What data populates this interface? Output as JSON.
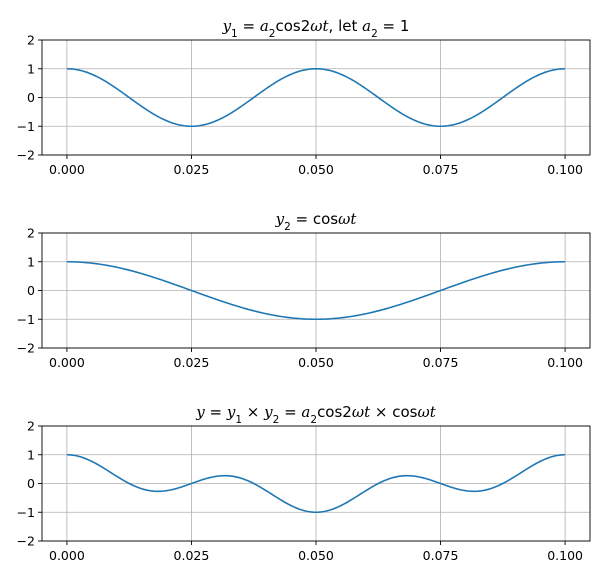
{
  "chart_data": [
    {
      "type": "line",
      "title": {
        "parts": [
          {
            "t": "y",
            "i": true
          },
          {
            "t": "1",
            "sub": true
          },
          {
            "t": " = "
          },
          {
            "t": "a",
            "i": true
          },
          {
            "t": "2",
            "sub": true
          },
          {
            "t": "cos2"
          },
          {
            "t": "ωt",
            "i": true
          },
          {
            "t": ", let "
          },
          {
            "t": "a",
            "i": true
          },
          {
            "t": "2",
            "sub": true
          },
          {
            "t": " = 1"
          }
        ]
      },
      "function": "cos(4*pi*t/0.1)",
      "x_range": [
        0,
        0.1
      ],
      "xlim": [
        -0.005,
        0.105
      ],
      "ylim": [
        -2,
        2
      ],
      "x_ticks": [
        0.0,
        0.025,
        0.05,
        0.075,
        0.1
      ],
      "x_tick_labels": [
        "0.000",
        "0.025",
        "0.050",
        "0.075",
        "0.100"
      ],
      "y_ticks": [
        -2,
        -1,
        0,
        1,
        2
      ],
      "y_tick_labels": [
        "−2",
        "−1",
        "0",
        "1",
        "2"
      ],
      "grid": true,
      "color": "#1f77b4",
      "points": 200
    },
    {
      "type": "line",
      "title": {
        "parts": [
          {
            "t": "y",
            "i": true
          },
          {
            "t": "2",
            "sub": true
          },
          {
            "t": " = cos"
          },
          {
            "t": "ωt",
            "i": true
          }
        ]
      },
      "function": "cos(2*pi*t/0.1)",
      "x_range": [
        0,
        0.1
      ],
      "xlim": [
        -0.005,
        0.105
      ],
      "ylim": [
        -2,
        2
      ],
      "x_ticks": [
        0.0,
        0.025,
        0.05,
        0.075,
        0.1
      ],
      "x_tick_labels": [
        "0.000",
        "0.025",
        "0.050",
        "0.075",
        "0.100"
      ],
      "y_ticks": [
        -2,
        -1,
        0,
        1,
        2
      ],
      "y_tick_labels": [
        "−2",
        "−1",
        "0",
        "1",
        "2"
      ],
      "grid": true,
      "color": "#1f77b4",
      "points": 200
    },
    {
      "type": "line",
      "title": {
        "parts": [
          {
            "t": "y",
            "i": true
          },
          {
            "t": " = "
          },
          {
            "t": "y",
            "i": true
          },
          {
            "t": "1",
            "sub": true
          },
          {
            "t": " × "
          },
          {
            "t": "y",
            "i": true
          },
          {
            "t": "2",
            "sub": true
          },
          {
            "t": " = "
          },
          {
            "t": "a",
            "i": true
          },
          {
            "t": "2",
            "sub": true
          },
          {
            "t": "cos2"
          },
          {
            "t": "ωt",
            "i": true
          },
          {
            "t": " × cos"
          },
          {
            "t": "ωt",
            "i": true
          }
        ]
      },
      "function": "cos(4*pi*t/0.1)*cos(2*pi*t/0.1)",
      "x_range": [
        0,
        0.1
      ],
      "xlim": [
        -0.005,
        0.105
      ],
      "ylim": [
        -2,
        2
      ],
      "x_ticks": [
        0.0,
        0.025,
        0.05,
        0.075,
        0.1
      ],
      "x_tick_labels": [
        "0.000",
        "0.025",
        "0.050",
        "0.075",
        "0.100"
      ],
      "y_ticks": [
        -2,
        -1,
        0,
        1,
        2
      ],
      "y_tick_labels": [
        "−2",
        "−1",
        "0",
        "1",
        "2"
      ],
      "grid": true,
      "color": "#1f77b4",
      "points": 200
    }
  ]
}
